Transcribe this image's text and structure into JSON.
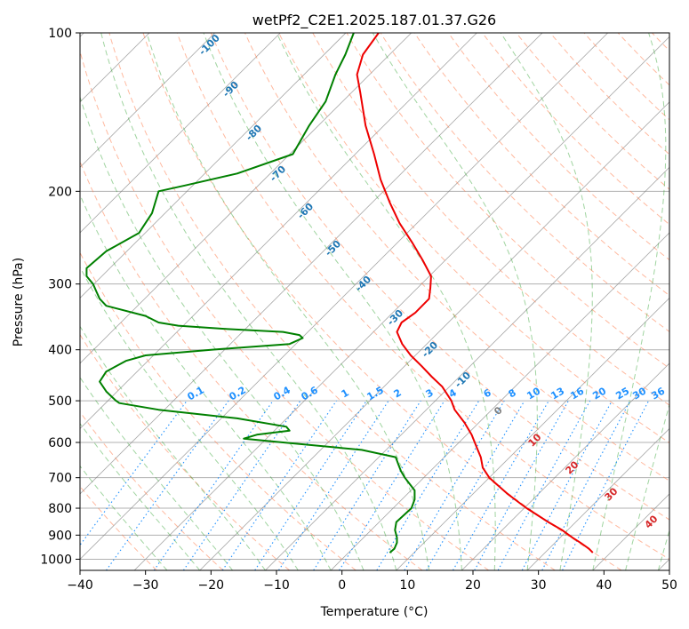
{
  "chart_data": {
    "type": "line",
    "title": "wetPf2_C2E1.2025.187.01.37.G26",
    "xlabel": "Temperature (°C)",
    "ylabel": "Pressure (hPa)",
    "xlim": [
      -40,
      50
    ],
    "ylim": [
      1050,
      100
    ],
    "y_scale": "log",
    "x_ticks": [
      -40,
      -30,
      -20,
      -10,
      0,
      10,
      20,
      30,
      40,
      50
    ],
    "y_ticks": [
      1000,
      900,
      800,
      700,
      600,
      500,
      400,
      300,
      200,
      100
    ],
    "grid": true,
    "colors": {
      "temperature": "#ee0000",
      "dewpoint": "#008000",
      "dry_adiabat": "#ff7f50",
      "moist_adiabat": "#2ca02c",
      "mixing_ratio": "#1e90ff",
      "isotherm": "#808080",
      "dry_label": "#1f77b4",
      "moist_label": "#d62728"
    },
    "series": [
      {
        "role": "temperature",
        "pressure": [
          972,
          955,
          930,
          910,
          880,
          850,
          800,
          780,
          750,
          700,
          670,
          640,
          610,
          580,
          550,
          520,
          500,
          470,
          450,
          430,
          410,
          390,
          370,
          355,
          340,
          320,
          305,
          290,
          270,
          250,
          230,
          210,
          190,
          170,
          150,
          130,
          120,
          110,
          100
        ],
        "temperature": [
          38.3,
          37.7,
          36.4,
          35.2,
          33.6,
          31.5,
          28.2,
          27.0,
          25.2,
          22.5,
          21.5,
          21.2,
          20.5,
          19.8,
          18.7,
          17.2,
          16.7,
          15.3,
          13.7,
          12.2,
          10.5,
          9.2,
          8.4,
          9.1,
          11.2,
          13.3,
          13.5,
          13.6,
          12.3,
          10.7,
          8.8,
          7.3,
          5.9,
          4.9,
          3.6,
          2.8,
          2.3,
          3.2,
          5.6
        ]
      },
      {
        "role": "dewpoint",
        "pressure": [
          972,
          955,
          930,
          910,
          880,
          850,
          800,
          770,
          740,
          700,
          680,
          660,
          640,
          620,
          600,
          590,
          580,
          570,
          560,
          540,
          520,
          505,
          500,
          480,
          460,
          440,
          420,
          410,
          400,
          390,
          380,
          375,
          370,
          365,
          360,
          355,
          345,
          330,
          320,
          310,
          300,
          290,
          280,
          260,
          240,
          220,
          200,
          195,
          185,
          170,
          150,
          135,
          120,
          110,
          100
        ],
        "dewpoint": [
          7.3,
          8.0,
          8.4,
          8.4,
          8.1,
          8.3,
          10.6,
          11.1,
          11.1,
          9.6,
          9.0,
          8.6,
          8.2,
          3.0,
          -9.0,
          -15.0,
          -13.0,
          -8.0,
          -8.5,
          -16.0,
          -28.0,
          -34.0,
          -34.5,
          -36.0,
          -37.0,
          -36.0,
          -33.0,
          -30.0,
          -20.0,
          -8.0,
          -6.0,
          -6.5,
          -9.0,
          -18.0,
          -25.0,
          -28.0,
          -30.0,
          -36.0,
          -37.0,
          -37.5,
          -38.0,
          -39.0,
          -39.0,
          -36.0,
          -31.0,
          -29.0,
          -28.0,
          -24.0,
          -16.0,
          -7.5,
          -5.0,
          -2.5,
          -1.0,
          0.5,
          1.8
        ]
      }
    ],
    "dry_adiabat_labels": [
      "-100",
      "-90",
      "-80",
      "-70",
      "-60",
      "-50",
      "-40",
      "-30",
      "-20",
      "-10"
    ],
    "moist_adiabat_labels": [
      "0",
      "10",
      "20",
      "30",
      "40"
    ],
    "mixing_ratio_labels": [
      "0.1",
      "0.2",
      "0.4",
      "0.6",
      "1",
      "1.5",
      "2",
      "3",
      "4",
      "6",
      "8",
      "10",
      "13",
      "16",
      "20",
      "25",
      "30",
      "36"
    ]
  }
}
